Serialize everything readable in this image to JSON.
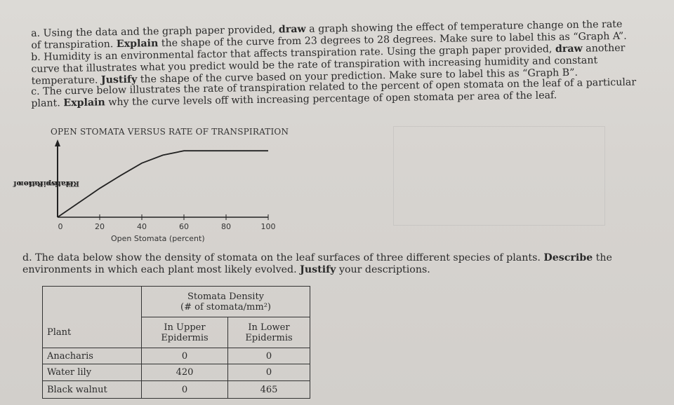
{
  "question_a": {
    "prefix": "a. Using the data and the graph paper provided, ",
    "bold1": "draw",
    "mid": " a graph showing the effect of temperature change on the rate of transpiration. ",
    "bold2": "Explain",
    "suffix": " the shape of the curve from 23 degrees to 28 degrees. Make sure to label this as “Graph A”."
  },
  "question_b": {
    "prefix": "b. Humidity is an environmental factor that affects transpiration rate. Using the graph paper provided, ",
    "bold1": "draw",
    "mid": " another curve that illustrates what you predict would be the rate of transpiration with increasing humidity and constant temperature. ",
    "bold2": "Justify",
    "suffix": " the shape of the curve based on your prediction. Make sure to label this as “Graph B”."
  },
  "question_c": {
    "prefix": "c. The curve below illustrates the rate of transpiration related to the percent of open stomata on the leaf of a particular plant. ",
    "bold1": "Explain",
    "suffix": " why the curve levels off with increasing percentage of open stomata per area of the leaf."
  },
  "question_d": {
    "prefix": "d. The data below show the density of stomata on the leaf surfaces of three different species of plants. ",
    "bold1": "Describe",
    "mid": " the environments in which each plant most likely evolved. ",
    "bold2": "Justify",
    "suffix": " your descriptions."
  },
  "chart_data": {
    "type": "line",
    "title": "OPEN STOMATA VERSUS RATE OF TRANSPIRATION",
    "xlabel": "Open Stomata (percent)",
    "ylabel_line1": "Relative Rate of",
    "ylabel_line2": "Transpiration",
    "x_ticks": [
      0,
      20,
      40,
      60,
      80,
      100
    ],
    "x_tick_labels": [
      "0",
      "20",
      "40",
      "60",
      "80",
      "100"
    ],
    "xlim": [
      0,
      100
    ],
    "ylim": [
      0,
      1
    ],
    "grid": false,
    "series": [
      {
        "x": [
          0,
          10,
          20,
          30,
          40,
          50,
          60,
          70,
          80,
          90,
          100
        ],
        "y": [
          0.0,
          0.2,
          0.4,
          0.58,
          0.75,
          0.86,
          0.92,
          0.92,
          0.92,
          0.92,
          0.92
        ]
      }
    ]
  },
  "table": {
    "header_group": "Stomata Density",
    "header_group_units": "(# of stomata/mm²)",
    "row_header": "Plant",
    "col_upper_line1": "In Upper",
    "col_upper_line2": "Epidermis",
    "col_lower_line1": "In Lower",
    "col_lower_line2": "Epidermis",
    "rows": [
      {
        "plant": "Anacharis",
        "upper": "0",
        "lower": "0"
      },
      {
        "plant": "Water lily",
        "upper": "420",
        "lower": "0"
      },
      {
        "plant": "Black walnut",
        "upper": "0",
        "lower": "465"
      }
    ]
  }
}
